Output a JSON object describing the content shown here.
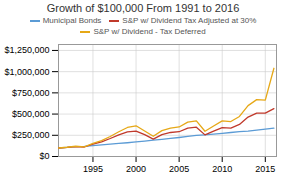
{
  "chart_data": {
    "type": "line",
    "title": "Growth of $100,000 From 1991 to 2016",
    "x": [
      1991,
      1992,
      1993,
      1994,
      1995,
      1996,
      1997,
      1998,
      1999,
      2000,
      2001,
      2002,
      2003,
      2004,
      2005,
      2006,
      2007,
      2008,
      2009,
      2010,
      2011,
      2012,
      2013,
      2014,
      2015,
      2016
    ],
    "series": [
      {
        "name": "Municipal Bonds",
        "color": "#5b9bd5",
        "values": [
          100000,
          107000,
          116000,
          120000,
          128000,
          136000,
          145000,
          154000,
          162000,
          172000,
          182000,
          192000,
          202000,
          213000,
          224000,
          236000,
          248000,
          255000,
          263000,
          273000,
          283000,
          292000,
          298000,
          310000,
          323000,
          335000
        ]
      },
      {
        "name": "S&P w/ Dividend Tax Adjusted at 30%",
        "color": "#c0392b",
        "values": [
          100000,
          107000,
          117000,
          112000,
          145000,
          172000,
          212000,
          255000,
          290000,
          300000,
          258000,
          205000,
          258000,
          283000,
          292000,
          335000,
          345000,
          255000,
          298000,
          340000,
          335000,
          378000,
          465000,
          512000,
          512000,
          565000
        ]
      },
      {
        "name": "S&P w/ Dividend - Tax Deferred",
        "color": "#e6a817",
        "values": [
          100000,
          109000,
          121000,
          114000,
          155000,
          188000,
          236000,
          292000,
          342000,
          362000,
          300000,
          238000,
          305000,
          335000,
          348000,
          405000,
          420000,
          298000,
          360000,
          420000,
          412000,
          472000,
          600000,
          670000,
          665000,
          1040000
        ]
      }
    ],
    "xlim": [
      1991,
      2016.3
    ],
    "xticks": [
      1995,
      2000,
      2005,
      2010,
      2015
    ],
    "ylim": [
      0,
      1320000
    ],
    "yticks": [
      {
        "value": 0,
        "label": "$0"
      },
      {
        "value": 250000,
        "label": "$250,000"
      },
      {
        "value": 500000,
        "label": "$500,000"
      },
      {
        "value": 750000,
        "label": "$750,000"
      },
      {
        "value": 1000000,
        "label": "$1,000,000"
      },
      {
        "value": 1250000,
        "label": "$1,250,000"
      }
    ],
    "grid": true,
    "legend": "top"
  }
}
